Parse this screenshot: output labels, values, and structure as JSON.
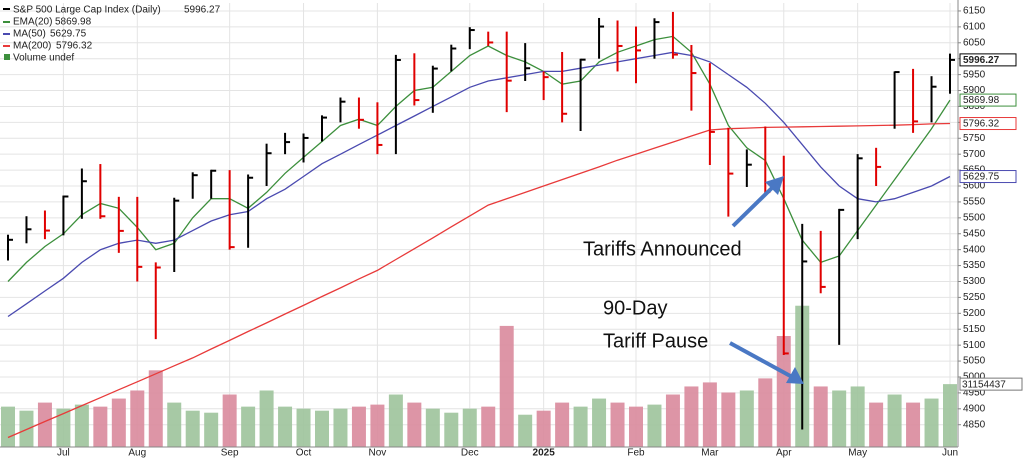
{
  "chart_data": {
    "type": "ohlc",
    "title": "S&P 500 Large Cap Index (Daily)",
    "categories": [
      null,
      null,
      null,
      "Jul",
      null,
      null,
      null,
      "Aug",
      null,
      null,
      null,
      null,
      "Sep",
      null,
      null,
      null,
      "Oct",
      null,
      null,
      null,
      "Nov",
      null,
      null,
      null,
      null,
      "Dec",
      null,
      null,
      null,
      "2025",
      null,
      null,
      null,
      null,
      "Feb",
      null,
      null,
      null,
      "Mar",
      null,
      null,
      null,
      "Apr",
      null,
      null,
      null,
      "May",
      null,
      null,
      null,
      null,
      "Jun"
    ],
    "high": [
      5447,
      5505,
      5523,
      5570,
      5655,
      5669,
      5566,
      5566,
      5360,
      5563,
      5643,
      5651,
      5650,
      5636,
      5733,
      5767,
      5765,
      5822,
      5878,
      5878,
      5863,
      6012,
      6017,
      5978,
      6044,
      6099,
      6085,
      6085,
      6049,
      5960,
      6021,
      6000,
      6128,
      6120,
      6101,
      6127,
      6147,
      6043,
      5986,
      5783,
      5715,
      5787,
      5695,
      5481,
      5459,
      5528,
      5700,
      5720,
      5960,
      5968,
      5945,
      6016
    ],
    "low": [
      5366,
      5420,
      5433,
      5445,
      5497,
      5497,
      5390,
      5300,
      5119,
      5330,
      5560,
      5560,
      5400,
      5406,
      5600,
      5700,
      5674,
      5740,
      5800,
      5780,
      5700,
      5700,
      5853,
      5830,
      5960,
      6030,
      6040,
      5832,
      5930,
      5870,
      5800,
      5773,
      6000,
      5960,
      5923,
      6000,
      6000,
      5837,
      5666,
      5504,
      5597,
      5570,
      5069,
      4835,
      5263,
      5101,
      5433,
      5600,
      5780,
      5767,
      5800,
      5890
    ],
    "close": [
      5431,
      5464,
      5460,
      5567,
      5615,
      5505,
      5459,
      5346,
      5344,
      5554,
      5634,
      5648,
      5408,
      5626,
      5703,
      5738,
      5751,
      5815,
      5865,
      5808,
      5729,
      5996,
      5870,
      5969,
      6032,
      6090,
      6051,
      5931,
      5970,
      5942,
      5827,
      5997,
      6101,
      6040,
      6026,
      6115,
      6013,
      5955,
      5770,
      5639,
      5667,
      5581,
      5074,
      5363,
      5283,
      5525,
      5687,
      5660,
      5958,
      5803,
      5912,
      5996.27
    ],
    "up_color": "#000000",
    "down_color": "#e00000",
    "series": [
      {
        "name": "EMA(20)",
        "color": "#3c8f3c",
        "values": [
          5300,
          5360,
          5410,
          5450,
          5510,
          5545,
          5530,
          5470,
          5400,
          5420,
          5500,
          5560,
          5560,
          5530,
          5580,
          5640,
          5690,
          5740,
          5790,
          5810,
          5790,
          5850,
          5900,
          5910,
          5960,
          6010,
          6040,
          6010,
          5990,
          5960,
          5920,
          5930,
          5990,
          6020,
          6040,
          6060,
          6070,
          6020,
          5920,
          5790,
          5720,
          5680,
          5560,
          5430,
          5360,
          5380,
          5460,
          5540,
          5620,
          5700,
          5780,
          5869.98
        ]
      },
      {
        "name": "MA(50)",
        "color": "#4a4ab0",
        "values": [
          5190,
          5230,
          5270,
          5310,
          5360,
          5400,
          5420,
          5430,
          5420,
          5430,
          5460,
          5490,
          5510,
          5520,
          5560,
          5590,
          5630,
          5670,
          5700,
          5730,
          5760,
          5790,
          5820,
          5850,
          5880,
          5910,
          5930,
          5940,
          5950,
          5960,
          5960,
          5970,
          5980,
          5990,
          6000,
          6010,
          6020,
          6010,
          5990,
          5950,
          5910,
          5860,
          5800,
          5730,
          5660,
          5600,
          5560,
          5550,
          5560,
          5580,
          5600,
          5629.75
        ]
      },
      {
        "name": "MA(200)",
        "color": "#e83a3a",
        "values": [
          4810,
          4835,
          4860,
          4885,
          4910,
          4935,
          4960,
          4985,
          5010,
          5035,
          5060,
          5088,
          5115,
          5143,
          5170,
          5198,
          5225,
          5253,
          5280,
          5308,
          5335,
          5369,
          5403,
          5437,
          5472,
          5506,
          5540,
          5560,
          5580,
          5600,
          5620,
          5640,
          5660,
          5681,
          5700,
          5719,
          5738,
          5757,
          5776,
          5780,
          5782,
          5784,
          5785,
          5786,
          5787,
          5788,
          5789,
          5790,
          5791,
          5793,
          5795,
          5796.32
        ]
      }
    ],
    "volume": {
      "name": "Volume undef",
      "up_color": "#9dc39b",
      "down_color": "#d98a9c",
      "values": [
        20000000,
        18000000,
        22000000,
        19000000,
        21000000,
        20000000,
        24000000,
        28000000,
        38000000,
        22000000,
        18000000,
        17000000,
        26000000,
        20000000,
        28000000,
        20000000,
        19000000,
        18000000,
        19000000,
        20000000,
        21000000,
        26000000,
        22000000,
        19000000,
        17000000,
        19000000,
        20000000,
        60000000,
        16000000,
        18000000,
        22000000,
        20000000,
        24000000,
        22000000,
        20000000,
        21000000,
        26000000,
        30000000,
        32000000,
        27000000,
        28000000,
        34000000,
        55000000,
        70000000,
        30000000,
        28000000,
        30000000,
        22000000,
        26000000,
        22000000,
        24000000,
        31154437
      ]
    },
    "ylim": [
      4780,
      6175
    ],
    "yticks": [
      4850,
      4900,
      4950,
      5000,
      5050,
      5100,
      5150,
      5200,
      5250,
      5300,
      5350,
      5400,
      5450,
      5500,
      5550,
      5600,
      5650,
      5700,
      5750,
      5800,
      5850,
      5900,
      5950,
      6000,
      6050,
      6100,
      6150
    ],
    "y2lim": [
      0,
      220000000
    ],
    "grid": true,
    "annotations": [
      {
        "text": "Tariffs Announced"
      },
      {
        "text": "90-Day"
      },
      {
        "text": "Tariff Pause"
      }
    ]
  }
}
